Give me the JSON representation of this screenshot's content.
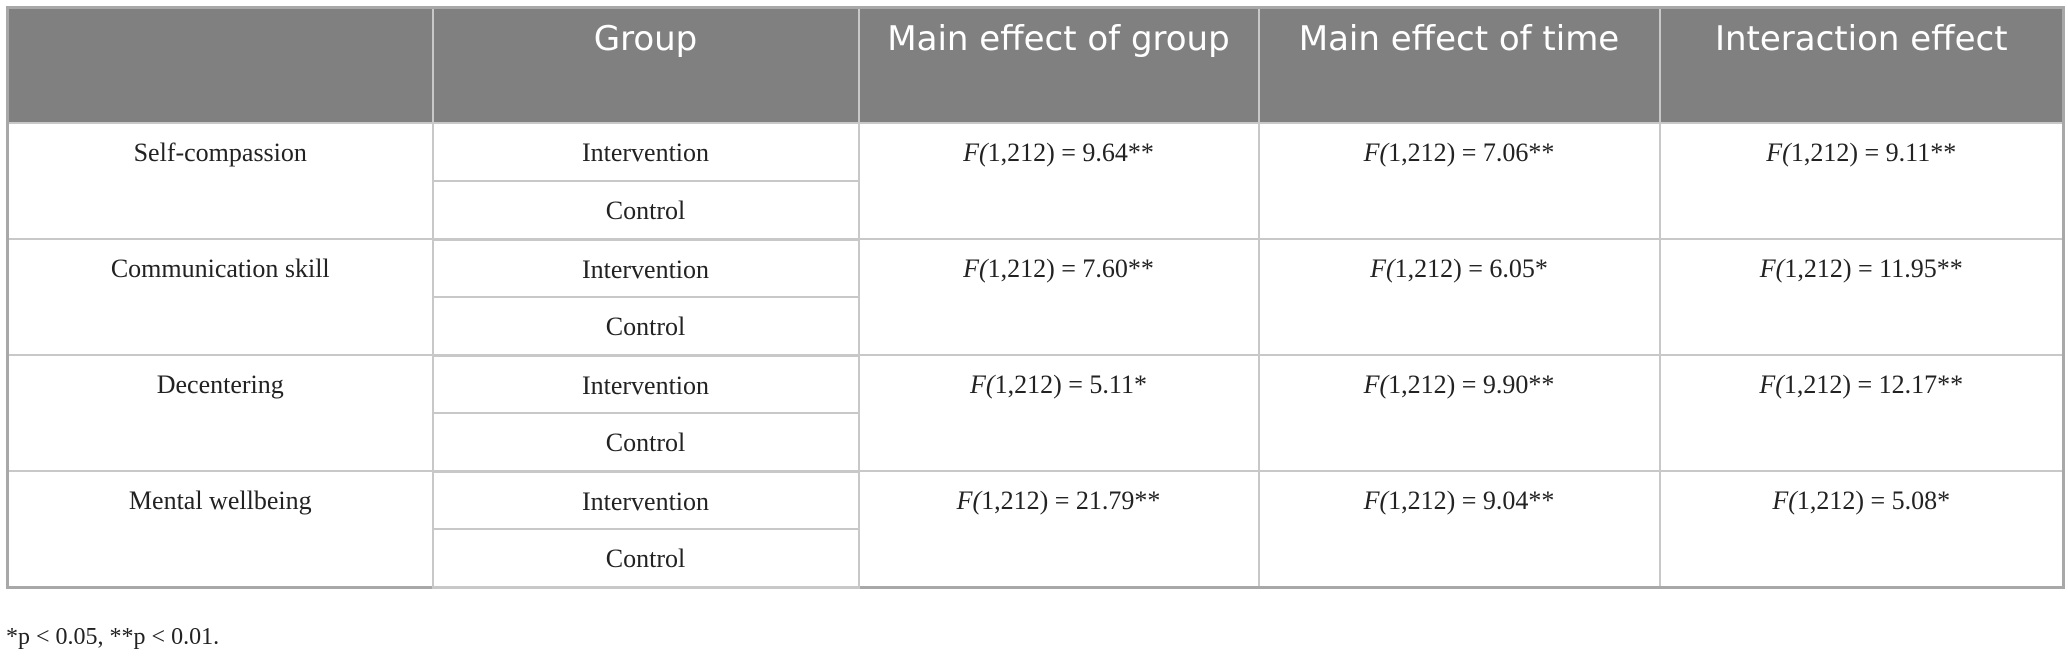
{
  "columns": [
    "Group",
    "Main effect of group",
    "Main effect of time",
    "Interaction effect"
  ],
  "rows": [
    {
      "measure": "Self-compassion",
      "groups": [
        "Intervention",
        "Control"
      ],
      "group_effect": "F(1,212) = 9.64**",
      "time_effect": "F(1,212) = 7.06**",
      "interaction": "F(1,212) = 9.11**"
    },
    {
      "measure": "Communication skill",
      "groups": [
        "Intervention",
        "Control"
      ],
      "group_effect": "F(1,212) = 7.60**",
      "time_effect": "F(1,212) = 6.05*",
      "interaction": "F(1,212) = 11.95**"
    },
    {
      "measure": "Decentering",
      "groups": [
        "Intervention",
        "Control"
      ],
      "group_effect": "F(1,212) = 5.11*",
      "time_effect": "F(1,212) = 9.90**",
      "interaction": "F(1,212) = 12.17**"
    },
    {
      "measure": "Mental wellbeing",
      "groups": [
        "Intervention",
        "Control"
      ],
      "group_effect": "F(1,212) = 21.79**",
      "time_effect": "F(1,212) = 9.04**",
      "interaction": "F(1,212) = 5.08*"
    }
  ],
  "footnote": "*p < 0.05, **p < 0.01."
}
